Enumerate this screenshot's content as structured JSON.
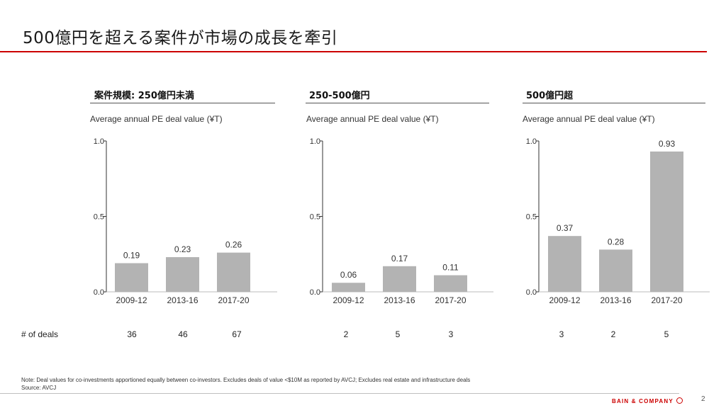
{
  "slide": {
    "title": "500億円を超える案件が市場の成長を牽引",
    "deals_label": "# of deals",
    "note": "Note: Deal values for co-investments apportioned equally between co-investors. Excludes deals of value <$10M as reported by AVCJ; Excludes real estate and infrastructure deals",
    "source": "Source: AVCJ",
    "brand": "BAIN & COMPANY",
    "page_number": "2",
    "bar_color": "#b3b3b3",
    "accent_color": "#cc0000"
  },
  "panels": [
    {
      "header": "案件規模: 250億円未満",
      "subtitle": "Average annual PE deal value (¥T)",
      "deals": [
        "36",
        "46",
        "67"
      ]
    },
    {
      "header": "250-500億円",
      "subtitle": "Average annual PE deal value (¥T)",
      "deals": [
        "2",
        "5",
        "3"
      ]
    },
    {
      "header": "500億円超",
      "subtitle": "Average annual PE deal value (¥T)",
      "deals": [
        "3",
        "2",
        "5"
      ]
    }
  ],
  "chart_data": [
    {
      "type": "bar",
      "title": "案件規模: 250億円未満",
      "ylabel": "Average annual PE deal value (¥T)",
      "categories": [
        "2009-12",
        "2013-16",
        "2017-20"
      ],
      "values": [
        0.19,
        0.23,
        0.26
      ],
      "value_labels": [
        "0.19",
        "0.23",
        "0.26"
      ],
      "yticks": [
        "0.0",
        "0.5",
        "1.0"
      ],
      "ylim": [
        0,
        1.0
      ]
    },
    {
      "type": "bar",
      "title": "250-500億円",
      "ylabel": "Average annual PE deal value (¥T)",
      "categories": [
        "2009-12",
        "2013-16",
        "2017-20"
      ],
      "values": [
        0.06,
        0.17,
        0.11
      ],
      "value_labels": [
        "0.06",
        "0.17",
        "0.11"
      ],
      "yticks": [
        "0.0",
        "0.5",
        "1.0"
      ],
      "ylim": [
        0,
        1.0
      ]
    },
    {
      "type": "bar",
      "title": "500億円超",
      "ylabel": "Average annual PE deal value (¥T)",
      "categories": [
        "2009-12",
        "2013-16",
        "2017-20"
      ],
      "values": [
        0.37,
        0.28,
        0.93
      ],
      "value_labels": [
        "0.37",
        "0.28",
        "0.93"
      ],
      "yticks": [
        "0.0",
        "0.5",
        "1.0"
      ],
      "ylim": [
        0,
        1.0
      ]
    }
  ]
}
